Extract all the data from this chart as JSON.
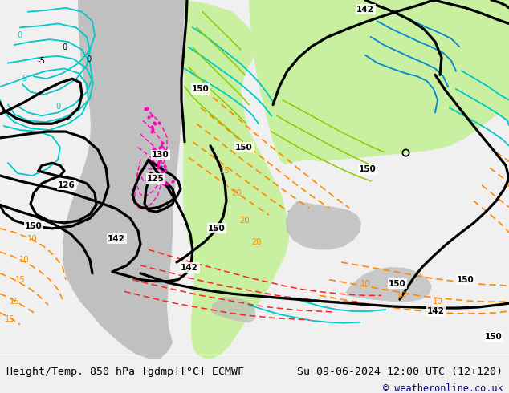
{
  "title_left": "Height/Temp. 850 hPa [gdmp][°C] ECMWF",
  "title_right": "Su 09-06-2024 12:00 UTC (12+120)",
  "copyright": "© weatheronline.co.uk",
  "footer_bg": "#f0f0f0",
  "map_bg": "#d8d8d8",
  "footer_text_color": "#000000",
  "copyright_color": "#000080",
  "title_fontsize": 9.5,
  "copyright_fontsize": 8.5,
  "fig_width": 6.34,
  "fig_height": 4.9,
  "dpi": 100,
  "green_light": "#c8f0a0",
  "green_mid": "#a8e878",
  "green_dark": "#88d050",
  "gray_land": "#b8b8b8",
  "cyan_color": "#00c8c8",
  "cyan_dark": "#0088cc",
  "orange_color": "#ff8800",
  "red_color": "#ff2020",
  "pink_color": "#ff00bb",
  "black_contour": "#000000",
  "lime_color": "#88cc00"
}
